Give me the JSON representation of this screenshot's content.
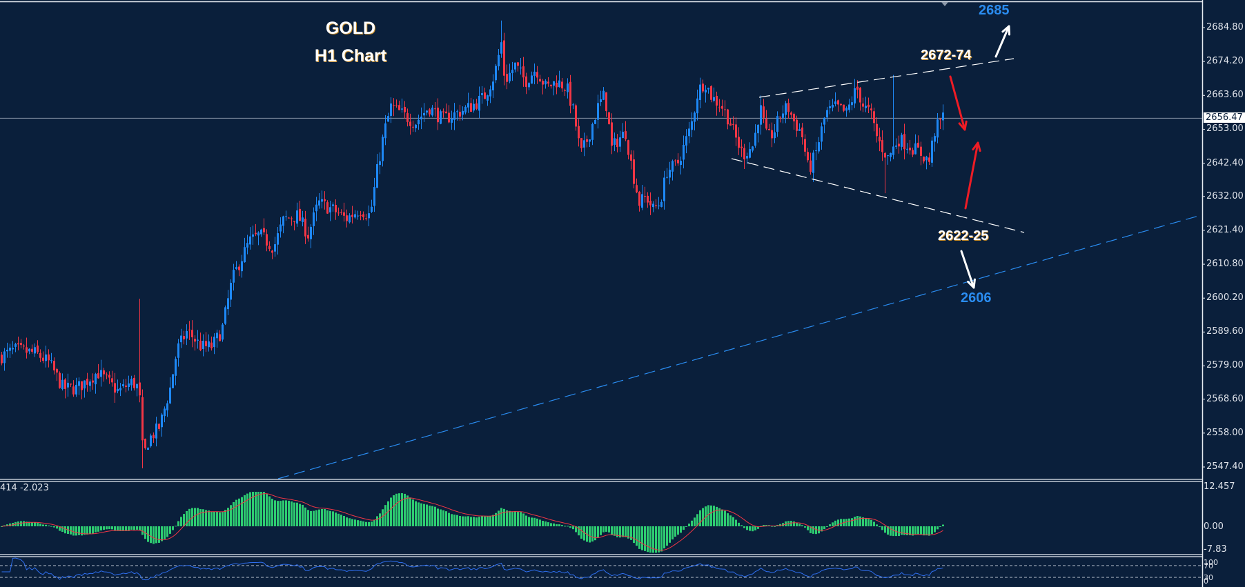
{
  "title": {
    "line1": "GOLD",
    "line2": "H1 Chart"
  },
  "colors": {
    "background": "#0a1f3b",
    "bull": "#1e88f5",
    "bear": "#f23645",
    "axis": "#e8ecf2",
    "price_line": "#8d99aa",
    "macd_hist": "#2ecc71",
    "macd_signal": "#f23645",
    "rsi_line": "#2f6ff0",
    "trend_white": "#ffffff",
    "trend_blue": "#2a8cf0",
    "arrow_red": "#ee1c25",
    "arrow_white": "#ffffff"
  },
  "price_axis": {
    "ticks": [
      "2684.80",
      "2674.20",
      "2663.60",
      "2653.00",
      "2642.40",
      "2632.00",
      "2621.40",
      "2610.80",
      "2600.20",
      "2589.60",
      "2579.00",
      "2568.60",
      "2558.00",
      "2547.40"
    ],
    "current_price": "2656.47"
  },
  "macd": {
    "label": "414 -2.023",
    "axis": [
      "12.457",
      "0.00",
      "-7.83"
    ]
  },
  "rsi": {
    "axis": [
      "100",
      "70",
      "30",
      "0"
    ]
  },
  "annotations": {
    "target_up": "2685",
    "resistance": "2672-74",
    "support": "2622-25",
    "target_down": "2606"
  },
  "chart_data": {
    "type": "candlestick",
    "title": "GOLD H1 Chart",
    "instrument": "GOLD",
    "timeframe": "H1",
    "ylim": [
      2542,
      2690
    ],
    "yticks": [
      2684.8,
      2674.2,
      2663.6,
      2653.0,
      2642.4,
      2632.0,
      2621.4,
      2610.8,
      2600.2,
      2589.6,
      2579.0,
      2568.6,
      2558.0,
      2547.4
    ],
    "current_price": 2656.47,
    "close_path_anchors": [
      [
        0,
        2582
      ],
      [
        20,
        2584
      ],
      [
        50,
        2583
      ],
      [
        70,
        2580
      ],
      [
        90,
        2572
      ],
      [
        110,
        2572
      ],
      [
        140,
        2577
      ],
      [
        170,
        2571
      ],
      [
        190,
        2574
      ],
      [
        200,
        2572
      ],
      [
        206,
        2550
      ],
      [
        214,
        2556
      ],
      [
        230,
        2560
      ],
      [
        245,
        2572
      ],
      [
        255,
        2584
      ],
      [
        270,
        2590
      ],
      [
        290,
        2585
      ],
      [
        305,
        2585
      ],
      [
        320,
        2590
      ],
      [
        335,
        2606
      ],
      [
        345,
        2611
      ],
      [
        360,
        2618
      ],
      [
        375,
        2620
      ],
      [
        395,
        2616
      ],
      [
        410,
        2625
      ],
      [
        430,
        2626
      ],
      [
        445,
        2620
      ],
      [
        460,
        2630
      ],
      [
        480,
        2628
      ],
      [
        500,
        2625
      ],
      [
        520,
        2628
      ],
      [
        535,
        2626
      ],
      [
        545,
        2640
      ],
      [
        555,
        2652
      ],
      [
        565,
        2660
      ],
      [
        580,
        2658
      ],
      [
        600,
        2655
      ],
      [
        620,
        2660
      ],
      [
        640,
        2656
      ],
      [
        660,
        2658
      ],
      [
        680,
        2660
      ],
      [
        700,
        2663
      ],
      [
        715,
        2670
      ],
      [
        725,
        2680
      ],
      [
        730,
        2668
      ],
      [
        745,
        2673
      ],
      [
        760,
        2668
      ],
      [
        775,
        2672
      ],
      [
        790,
        2666
      ],
      [
        805,
        2668
      ],
      [
        820,
        2666
      ],
      [
        830,
        2658
      ],
      [
        840,
        2645
      ],
      [
        850,
        2650
      ],
      [
        865,
        2660
      ],
      [
        875,
        2664
      ],
      [
        885,
        2647
      ],
      [
        895,
        2650
      ],
      [
        905,
        2652
      ],
      [
        915,
        2640
      ],
      [
        925,
        2630
      ],
      [
        935,
        2632
      ],
      [
        945,
        2628
      ],
      [
        955,
        2630
      ],
      [
        965,
        2640
      ],
      [
        980,
        2642
      ],
      [
        990,
        2648
      ],
      [
        1000,
        2654
      ],
      [
        1010,
        2665
      ],
      [
        1020,
        2668
      ],
      [
        1030,
        2663
      ],
      [
        1045,
        2660
      ],
      [
        1055,
        2656
      ],
      [
        1065,
        2650
      ],
      [
        1075,
        2645
      ],
      [
        1090,
        2648
      ],
      [
        1100,
        2660
      ],
      [
        1110,
        2650
      ],
      [
        1120,
        2652
      ],
      [
        1130,
        2658
      ],
      [
        1140,
        2660
      ],
      [
        1150,
        2655
      ],
      [
        1160,
        2652
      ],
      [
        1170,
        2640
      ],
      [
        1180,
        2645
      ],
      [
        1195,
        2658
      ],
      [
        1210,
        2660
      ],
      [
        1225,
        2658
      ],
      [
        1240,
        2666
      ],
      [
        1250,
        2660
      ],
      [
        1260,
        2658
      ],
      [
        1270,
        2650
      ],
      [
        1285,
        2644
      ],
      [
        1300,
        2650
      ],
      [
        1315,
        2648
      ],
      [
        1330,
        2646
      ],
      [
        1345,
        2643
      ],
      [
        1352,
        2652
      ],
      [
        1365,
        2657
      ]
    ],
    "indicators": [
      {
        "name": "MACD",
        "value_label": "414 -2.023",
        "ylim": [
          -7.83,
          12.457
        ]
      },
      {
        "name": "RSI",
        "levels": [
          70,
          30
        ],
        "ylim": [
          0,
          100
        ]
      }
    ],
    "trendlines": [
      {
        "name": "channel-upper",
        "style": "dashed",
        "color": "white",
        "from": [
          1100,
          141
        ],
        "to": [
          1469,
          85
        ]
      },
      {
        "name": "channel-lower",
        "style": "dashed",
        "color": "white",
        "from": [
          1060,
          230
        ],
        "to": [
          1484,
          337
        ]
      },
      {
        "name": "rising-support",
        "style": "dashed",
        "color": "blue",
        "from": [
          403,
          694
        ],
        "to": [
          1740,
          312
        ]
      }
    ],
    "arrows": [
      {
        "color": "red",
        "from": [
          1377,
          111
        ],
        "to": [
          1398,
          188
        ]
      },
      {
        "color": "red",
        "from": [
          1399,
          302
        ],
        "to": [
          1417,
          207
        ]
      },
      {
        "color": "white",
        "from": [
          1443,
          82
        ],
        "to": [
          1462,
          38
        ]
      },
      {
        "color": "white",
        "from": [
          1393,
          364
        ],
        "to": [
          1411,
          417
        ]
      }
    ],
    "annotations": [
      {
        "text": "2685",
        "color": "blue",
        "price": 2685
      },
      {
        "text": "2672-74",
        "color": "white"
      },
      {
        "text": "2622-25",
        "color": "white"
      },
      {
        "text": "2606",
        "color": "blue",
        "price": 2606
      }
    ]
  }
}
